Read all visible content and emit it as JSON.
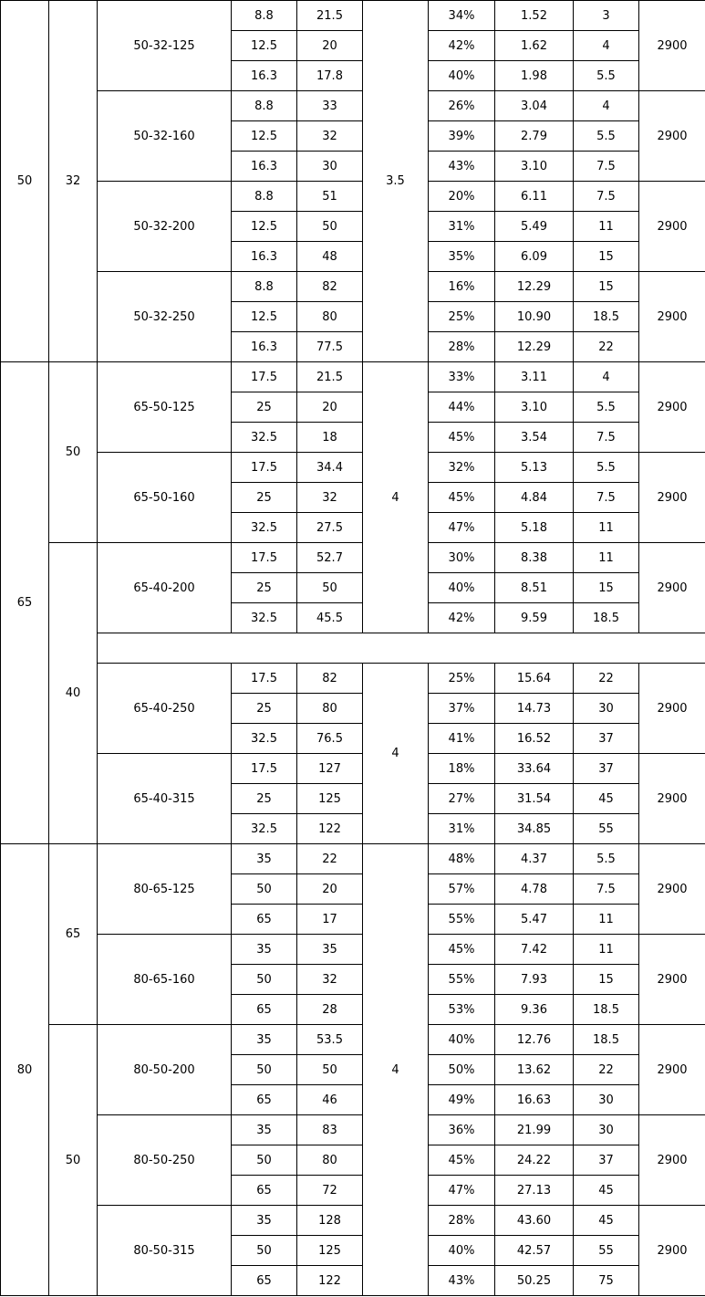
{
  "table": {
    "inlets": [
      "50",
      "65",
      "80"
    ],
    "outlets": [
      "32",
      "50",
      "40",
      "65",
      "50"
    ],
    "npsh": [
      "3.5",
      "4",
      "4",
      "4"
    ],
    "models": [
      {
        "name": "50-32-125",
        "speed": "2900",
        "points": [
          [
            "8.8",
            "21.5",
            "34%",
            "1.52",
            "3"
          ],
          [
            "12.5",
            "20",
            "42%",
            "1.62",
            "4"
          ],
          [
            "16.3",
            "17.8",
            "40%",
            "1.98",
            "5.5"
          ]
        ]
      },
      {
        "name": "50-32-160",
        "speed": "2900",
        "points": [
          [
            "8.8",
            "33",
            "26%",
            "3.04",
            "4"
          ],
          [
            "12.5",
            "32",
            "39%",
            "2.79",
            "5.5"
          ],
          [
            "16.3",
            "30",
            "43%",
            "3.10",
            "7.5"
          ]
        ]
      },
      {
        "name": "50-32-200",
        "speed": "2900",
        "points": [
          [
            "8.8",
            "51",
            "20%",
            "6.11",
            "7.5"
          ],
          [
            "12.5",
            "50",
            "31%",
            "5.49",
            "11"
          ],
          [
            "16.3",
            "48",
            "35%",
            "6.09",
            "15"
          ]
        ]
      },
      {
        "name": "50-32-250",
        "speed": "2900",
        "points": [
          [
            "8.8",
            "82",
            "16%",
            "12.29",
            "15"
          ],
          [
            "12.5",
            "80",
            "25%",
            "10.90",
            "18.5"
          ],
          [
            "16.3",
            "77.5",
            "28%",
            "12.29",
            "22"
          ]
        ]
      },
      {
        "name": "65-50-125",
        "speed": "2900",
        "points": [
          [
            "17.5",
            "21.5",
            "33%",
            "3.11",
            "4"
          ],
          [
            "25",
            "20",
            "44%",
            "3.10",
            "5.5"
          ],
          [
            "32.5",
            "18",
            "45%",
            "3.54",
            "7.5"
          ]
        ]
      },
      {
        "name": "65-50-160",
        "speed": "2900",
        "points": [
          [
            "17.5",
            "34.4",
            "32%",
            "5.13",
            "5.5"
          ],
          [
            "25",
            "32",
            "45%",
            "4.84",
            "7.5"
          ],
          [
            "32.5",
            "27.5",
            "47%",
            "5.18",
            "11"
          ]
        ]
      },
      {
        "name": "65-40-200",
        "speed": "2900",
        "points": [
          [
            "17.5",
            "52.7",
            "30%",
            "8.38",
            "11"
          ],
          [
            "25",
            "50",
            "40%",
            "8.51",
            "15"
          ],
          [
            "32.5",
            "45.5",
            "42%",
            "9.59",
            "18.5"
          ]
        ]
      },
      {
        "name": "65-40-250",
        "speed": "2900",
        "points": [
          [
            "17.5",
            "82",
            "25%",
            "15.64",
            "22"
          ],
          [
            "25",
            "80",
            "37%",
            "14.73",
            "30"
          ],
          [
            "32.5",
            "76.5",
            "41%",
            "16.52",
            "37"
          ]
        ]
      },
      {
        "name": "65-40-315",
        "speed": "2900",
        "points": [
          [
            "17.5",
            "127",
            "18%",
            "33.64",
            "37"
          ],
          [
            "25",
            "125",
            "27%",
            "31.54",
            "45"
          ],
          [
            "32.5",
            "122",
            "31%",
            "34.85",
            "55"
          ]
        ]
      },
      {
        "name": "80-65-125",
        "speed": "2900",
        "points": [
          [
            "35",
            "22",
            "48%",
            "4.37",
            "5.5"
          ],
          [
            "50",
            "20",
            "57%",
            "4.78",
            "7.5"
          ],
          [
            "65",
            "17",
            "55%",
            "5.47",
            "11"
          ]
        ]
      },
      {
        "name": "80-65-160",
        "speed": "2900",
        "points": [
          [
            "35",
            "35",
            "45%",
            "7.42",
            "11"
          ],
          [
            "50",
            "32",
            "55%",
            "7.93",
            "15"
          ],
          [
            "65",
            "28",
            "53%",
            "9.36",
            "18.5"
          ]
        ]
      },
      {
        "name": "80-50-200",
        "speed": "2900",
        "points": [
          [
            "35",
            "53.5",
            "40%",
            "12.76",
            "18.5"
          ],
          [
            "50",
            "50",
            "50%",
            "13.62",
            "22"
          ],
          [
            "65",
            "46",
            "49%",
            "16.63",
            "30"
          ]
        ]
      },
      {
        "name": "80-50-250",
        "speed": "2900",
        "points": [
          [
            "35",
            "83",
            "36%",
            "21.99",
            "30"
          ],
          [
            "50",
            "80",
            "45%",
            "24.22",
            "37"
          ],
          [
            "65",
            "72",
            "47%",
            "27.13",
            "45"
          ]
        ]
      },
      {
        "name": "80-50-315",
        "speed": "2900",
        "points": [
          [
            "35",
            "128",
            "28%",
            "43.60",
            "45"
          ],
          [
            "50",
            "125",
            "40%",
            "42.57",
            "55"
          ],
          [
            "65",
            "122",
            "43%",
            "50.25",
            "75"
          ]
        ]
      }
    ]
  }
}
